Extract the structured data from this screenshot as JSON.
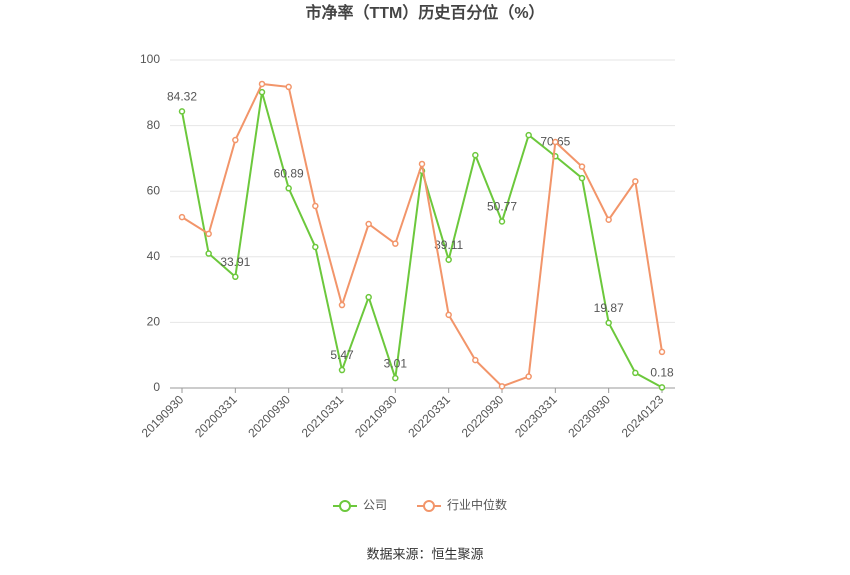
{
  "chart_data": {
    "type": "line",
    "title": "市净率（TTM）历史百分位（%）",
    "source": "数据来源：恒生聚源",
    "categories": [
      "20190930",
      null,
      "20200331",
      null,
      "20200930",
      null,
      "20210331",
      null,
      "20210930",
      null,
      "20220331",
      null,
      "20220930",
      null,
      "20230331",
      null,
      "20230930",
      null,
      "20240123"
    ],
    "ylim": [
      0,
      100
    ],
    "yticks": [
      0,
      20,
      40,
      60,
      80,
      100
    ],
    "grid": true,
    "legend": "bottom",
    "series": [
      {
        "name": "公司",
        "color": "#6cc83c",
        "values": [
          84.32,
          41,
          33.91,
          90.2,
          60.89,
          43,
          5.47,
          27.7,
          3.01,
          66.2,
          39.11,
          71,
          50.77,
          77.1,
          70.65,
          64,
          19.87,
          4.6,
          0.18
        ],
        "value_labels": [
          "84.32",
          null,
          "33.91",
          null,
          "60.89",
          null,
          "5.47",
          null,
          "3.01",
          null,
          "39.11",
          null,
          "50.77",
          null,
          "70.65",
          null,
          "19.87",
          null,
          "0.18"
        ]
      },
      {
        "name": "行业中位数",
        "color": "#f2956a",
        "values": [
          52.1,
          47,
          75.6,
          92.7,
          91.8,
          55.5,
          25.3,
          50,
          44,
          68.3,
          22.3,
          8.5,
          0.5,
          3.5,
          75,
          67.5,
          51.3,
          63,
          11
        ]
      }
    ]
  }
}
